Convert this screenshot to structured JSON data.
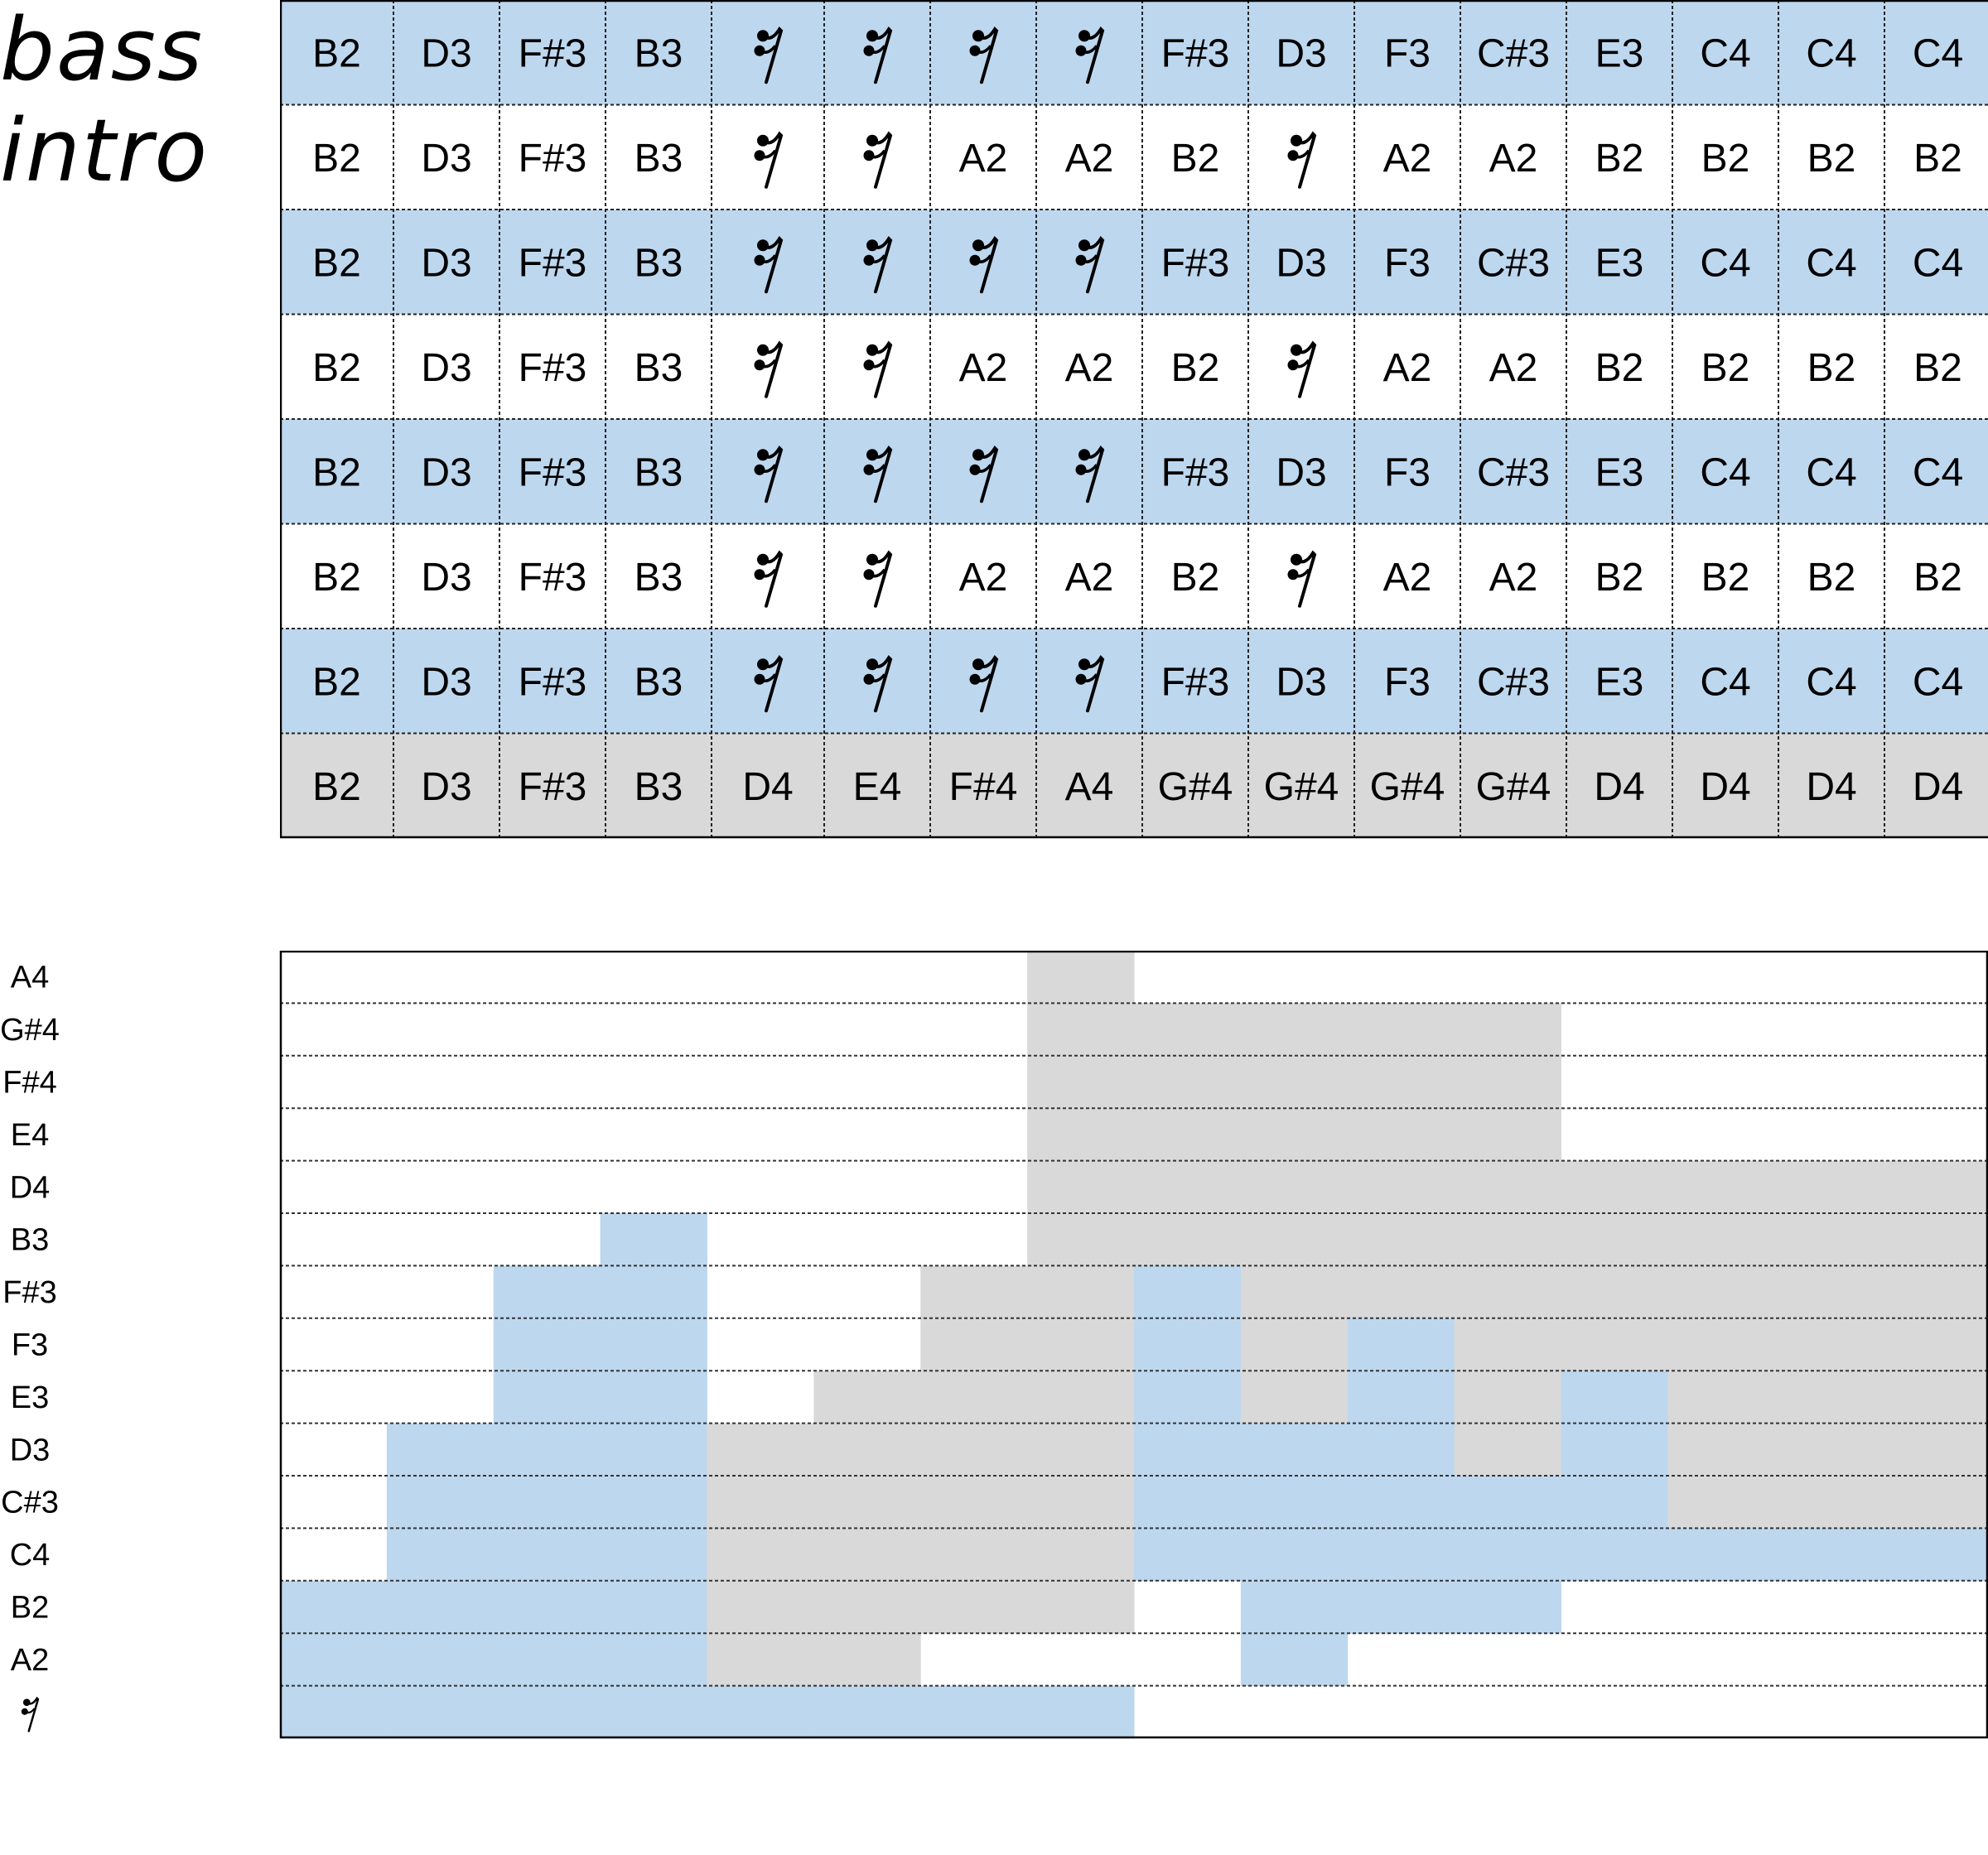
{
  "title": [
    "bass",
    "intro"
  ],
  "rest_symbol": "𝄿",
  "colors": {
    "blue": "#bdd7ee",
    "white": "#ffffff",
    "gray": "#d9d9d9",
    "border": "#000000"
  },
  "note_grid": {
    "rows": [
      {
        "color": "blue",
        "cells": [
          "B2",
          "D3",
          "F#3",
          "B3",
          "rest",
          "rest",
          "rest",
          "rest",
          "F#3",
          "D3",
          "F3",
          "C#3",
          "E3",
          "C4",
          "C4",
          "C4"
        ]
      },
      {
        "color": "white",
        "cells": [
          "B2",
          "D3",
          "F#3",
          "B3",
          "rest",
          "rest",
          "A2",
          "A2",
          "B2",
          "rest",
          "A2",
          "A2",
          "B2",
          "B2",
          "B2",
          "B2"
        ]
      },
      {
        "color": "blue",
        "cells": [
          "B2",
          "D3",
          "F#3",
          "B3",
          "rest",
          "rest",
          "rest",
          "rest",
          "F#3",
          "D3",
          "F3",
          "C#3",
          "E3",
          "C4",
          "C4",
          "C4"
        ]
      },
      {
        "color": "white",
        "cells": [
          "B2",
          "D3",
          "F#3",
          "B3",
          "rest",
          "rest",
          "A2",
          "A2",
          "B2",
          "rest",
          "A2",
          "A2",
          "B2",
          "B2",
          "B2",
          "B2"
        ]
      },
      {
        "color": "blue",
        "cells": [
          "B2",
          "D3",
          "F#3",
          "B3",
          "rest",
          "rest",
          "rest",
          "rest",
          "F#3",
          "D3",
          "F3",
          "C#3",
          "E3",
          "C4",
          "C4",
          "C4"
        ]
      },
      {
        "color": "white",
        "cells": [
          "B2",
          "D3",
          "F#3",
          "B3",
          "rest",
          "rest",
          "A2",
          "A2",
          "B2",
          "rest",
          "A2",
          "A2",
          "B2",
          "B2",
          "B2",
          "B2"
        ]
      },
      {
        "color": "blue",
        "cells": [
          "B2",
          "D3",
          "F#3",
          "B3",
          "rest",
          "rest",
          "rest",
          "rest",
          "F#3",
          "D3",
          "F3",
          "C#3",
          "E3",
          "C4",
          "C4",
          "C4"
        ]
      },
      {
        "color": "gray",
        "cells": [
          "B2",
          "D3",
          "F#3",
          "B3",
          "D4",
          "E4",
          "F#4",
          "A4",
          "G#4",
          "G#4",
          "G#4",
          "G#4",
          "D4",
          "D4",
          "D4",
          "D4"
        ]
      }
    ]
  },
  "piano_roll": {
    "pitches": [
      "A4",
      "G#4",
      "F#4",
      "E4",
      "D4",
      "B3",
      "F#3",
      "F3",
      "E3",
      "D3",
      "C#3",
      "C4",
      "B2",
      "A2",
      "rest"
    ],
    "steps": 16,
    "rows": [
      [
        "w",
        "w",
        "w",
        "w",
        "w",
        "w",
        "w",
        "g",
        "w",
        "w",
        "w",
        "w",
        "w",
        "w",
        "w",
        "w"
      ],
      [
        "w",
        "w",
        "w",
        "w",
        "w",
        "w",
        "w",
        "g",
        "g",
        "g",
        "g",
        "g",
        "w",
        "w",
        "w",
        "w"
      ],
      [
        "w",
        "w",
        "w",
        "w",
        "w",
        "w",
        "w",
        "g",
        "g",
        "g",
        "g",
        "g",
        "w",
        "w",
        "w",
        "w"
      ],
      [
        "w",
        "w",
        "w",
        "w",
        "w",
        "w",
        "w",
        "g",
        "g",
        "g",
        "g",
        "g",
        "w",
        "w",
        "w",
        "w"
      ],
      [
        "w",
        "w",
        "w",
        "w",
        "w",
        "w",
        "w",
        "g",
        "g",
        "g",
        "g",
        "g",
        "g",
        "g",
        "g",
        "g"
      ],
      [
        "w",
        "w",
        "w",
        "b",
        "w",
        "w",
        "w",
        "g",
        "g",
        "g",
        "g",
        "g",
        "g",
        "g",
        "g",
        "g"
      ],
      [
        "w",
        "w",
        "b",
        "b",
        "w",
        "w",
        "g",
        "g",
        "b",
        "g",
        "g",
        "g",
        "g",
        "g",
        "g",
        "g"
      ],
      [
        "w",
        "w",
        "b",
        "b",
        "w",
        "w",
        "g",
        "g",
        "b",
        "g",
        "b",
        "g",
        "g",
        "g",
        "g",
        "g"
      ],
      [
        "w",
        "w",
        "b",
        "b",
        "w",
        "g",
        "g",
        "g",
        "b",
        "g",
        "b",
        "g",
        "b",
        "g",
        "g",
        "g"
      ],
      [
        "w",
        "b",
        "b",
        "b",
        "g",
        "g",
        "g",
        "g",
        "b",
        "b",
        "b",
        "g",
        "b",
        "g",
        "g",
        "g"
      ],
      [
        "w",
        "b",
        "b",
        "b",
        "g",
        "g",
        "g",
        "g",
        "b",
        "b",
        "b",
        "b",
        "b",
        "g",
        "g",
        "g"
      ],
      [
        "w",
        "b",
        "b",
        "b",
        "g",
        "g",
        "g",
        "g",
        "b",
        "b",
        "b",
        "b",
        "b",
        "b",
        "b",
        "b"
      ],
      [
        "b",
        "b",
        "b",
        "b",
        "g",
        "g",
        "g",
        "g",
        "w",
        "b",
        "b",
        "b",
        "w",
        "w",
        "w",
        "w"
      ],
      [
        "b",
        "b",
        "b",
        "b",
        "g",
        "g",
        "w",
        "w",
        "w",
        "b",
        "w",
        "w",
        "w",
        "w",
        "w",
        "w"
      ],
      [
        "b",
        "b",
        "b",
        "b",
        "b",
        "b",
        "b",
        "b",
        "w",
        "w",
        "w",
        "w",
        "w",
        "w",
        "w",
        "w"
      ]
    ]
  }
}
